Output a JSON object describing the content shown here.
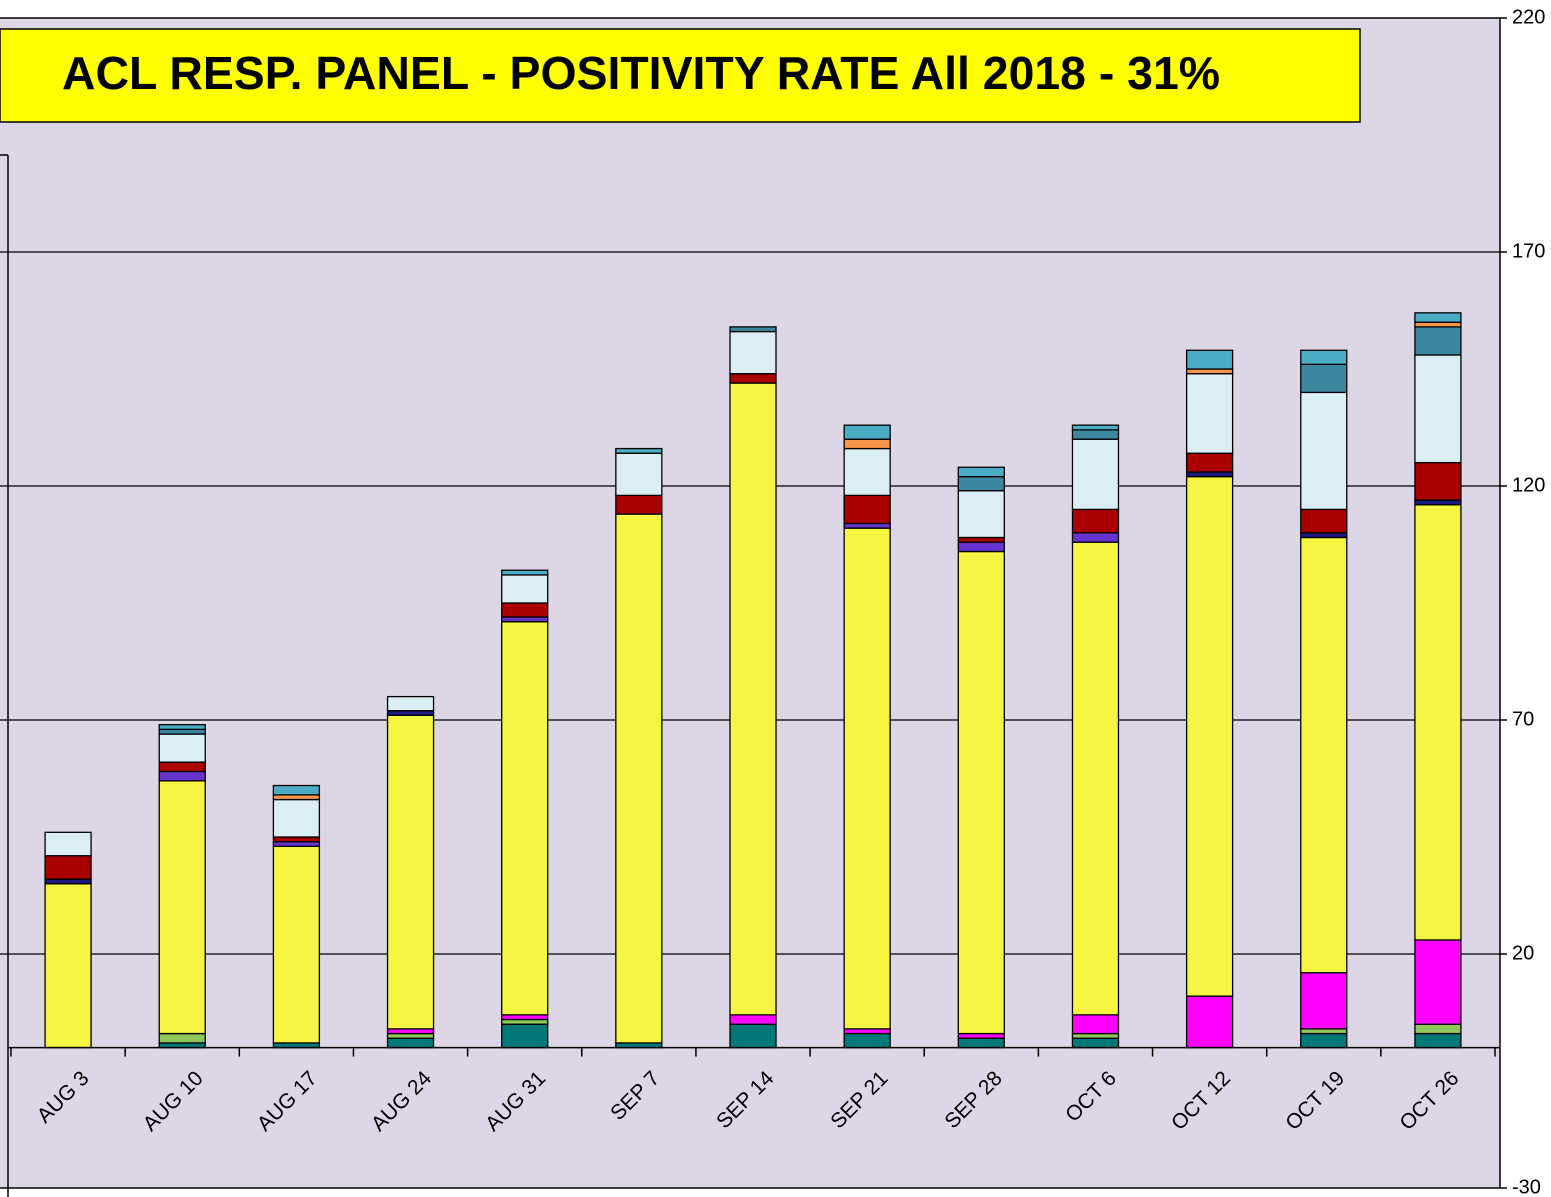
{
  "chart_data": {
    "type": "stacked_bar",
    "title": "ACL RESP. PANEL -  POSITIVITY RATE All 2018 - 31%",
    "categories": [
      "AUG 3",
      "AUG 10",
      "AUG 17",
      "AUG 24",
      "AUG 31",
      "SEP 7",
      "SEP 14",
      "SEP 21",
      "SEP 28",
      "OCT 6",
      "OCT 12",
      "OCT 19",
      "OCT 26"
    ],
    "series": [
      {
        "color": "#007878",
        "values": [
          0,
          1,
          1,
          2,
          5,
          1,
          5,
          3,
          2,
          2,
          0,
          3,
          3
        ]
      },
      {
        "color": "#8fc85a",
        "values": [
          0,
          2,
          0,
          1,
          1,
          0,
          0,
          0,
          0,
          1,
          0,
          1,
          2
        ]
      },
      {
        "color": "#ff00ff",
        "values": [
          0,
          0,
          0,
          1,
          1,
          0,
          2,
          1,
          1,
          4,
          11,
          12,
          18
        ]
      },
      {
        "color": "#f5f542",
        "values": [
          35,
          54,
          42,
          67,
          84,
          113,
          135,
          107,
          103,
          101,
          111,
          93,
          93
        ]
      },
      {
        "color": "#1a1a80",
        "values": [
          1,
          0,
          0,
          1,
          0,
          0,
          0,
          0,
          0,
          0,
          1,
          1,
          1
        ]
      },
      {
        "color": "#6633cc",
        "values": [
          0,
          2,
          1,
          0,
          1,
          0,
          0,
          1,
          2,
          2,
          0,
          0,
          0
        ]
      },
      {
        "color": "#aa0000",
        "values": [
          5,
          2,
          1,
          0,
          3,
          4,
          2,
          6,
          1,
          5,
          4,
          5,
          8
        ]
      },
      {
        "color": "#dbeef4",
        "values": [
          5,
          6,
          8,
          3,
          6,
          9,
          9,
          10,
          10,
          15,
          17,
          25,
          23
        ]
      },
      {
        "color": "#3c87a0",
        "values": [
          0,
          1,
          0,
          0,
          0,
          0,
          1,
          0,
          3,
          2,
          0,
          6,
          6
        ]
      },
      {
        "color": "#f79646",
        "values": [
          0,
          0,
          1,
          0,
          0,
          0,
          0,
          2,
          0,
          0,
          1,
          0,
          1
        ]
      },
      {
        "color": "#4bacc6",
        "values": [
          0,
          1,
          2,
          0,
          1,
          1,
          0,
          3,
          2,
          1,
          4,
          3,
          2
        ]
      }
    ],
    "ylim": [
      -30,
      220
    ],
    "yticks": [
      -30,
      20,
      70,
      120,
      170,
      220
    ],
    "grid": true,
    "y_axis_side": "right"
  }
}
